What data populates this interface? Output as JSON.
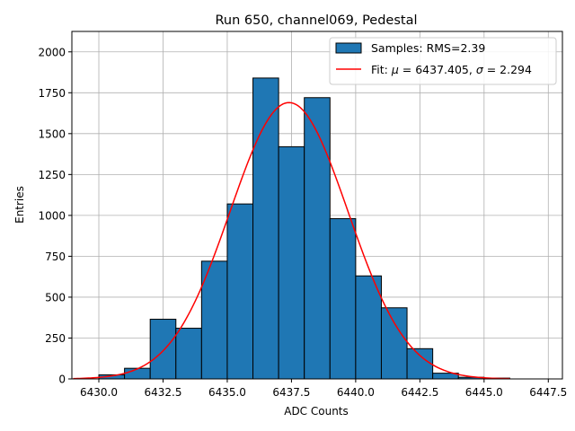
{
  "chart_data": {
    "type": "bar",
    "title": "Run 650, channel069, Pedestal",
    "xlabel": "ADC Counts",
    "ylabel": "Entries",
    "xlim": [
      6428.95,
      6448.05
    ],
    "ylim": [
      0,
      2125
    ],
    "grid": true,
    "legend_position": "top-right",
    "x_ticks": [
      6430.0,
      6432.5,
      6435.0,
      6437.5,
      6440.0,
      6442.5,
      6445.0,
      6447.5
    ],
    "x_tick_labels": [
      "6430.0",
      "6432.5",
      "6435.0",
      "6437.5",
      "6440.0",
      "6442.5",
      "6445.0",
      "6447.5"
    ],
    "y_ticks": [
      0,
      250,
      500,
      750,
      1000,
      1250,
      1500,
      1750,
      2000
    ],
    "y_tick_labels": [
      "0",
      "250",
      "500",
      "750",
      "1000",
      "1250",
      "1500",
      "1750",
      "2000"
    ],
    "histogram": {
      "name": "Samples: RMS=2.39",
      "color": "#1f77b4",
      "edge_color": "#000000",
      "bins": [
        {
          "x0": 6430.0,
          "x1": 6431.0,
          "count": 25
        },
        {
          "x0": 6431.0,
          "x1": 6432.0,
          "count": 65
        },
        {
          "x0": 6432.0,
          "x1": 6433.0,
          "count": 365
        },
        {
          "x0": 6433.0,
          "x1": 6434.0,
          "count": 310
        },
        {
          "x0": 6434.0,
          "x1": 6435.0,
          "count": 720
        },
        {
          "x0": 6435.0,
          "x1": 6436.0,
          "count": 1070
        },
        {
          "x0": 6436.0,
          "x1": 6437.0,
          "count": 1840
        },
        {
          "x0": 6437.0,
          "x1": 6438.0,
          "count": 1420
        },
        {
          "x0": 6438.0,
          "x1": 6439.0,
          "count": 1720
        },
        {
          "x0": 6439.0,
          "x1": 6440.0,
          "count": 980
        },
        {
          "x0": 6440.0,
          "x1": 6441.0,
          "count": 630
        },
        {
          "x0": 6441.0,
          "x1": 6442.0,
          "count": 435
        },
        {
          "x0": 6442.0,
          "x1": 6443.0,
          "count": 185
        },
        {
          "x0": 6443.0,
          "x1": 6444.0,
          "count": 35
        },
        {
          "x0": 6444.0,
          "x1": 6445.0,
          "count": 10
        },
        {
          "x0": 6445.0,
          "x1": 6446.0,
          "count": 5
        }
      ]
    },
    "fit": {
      "name": "Fit: μ = 6437.405, σ = 2.294",
      "label_prefix": "Fit: ",
      "mu_symbol": "μ",
      "mu_text": " = 6437.405, ",
      "sigma_symbol": "σ",
      "sigma_text": " = 2.294",
      "color": "#ff0000",
      "mu": 6437.405,
      "sigma": 2.294,
      "amplitude": 1690,
      "x_range": [
        6429.0,
        6446.0
      ]
    }
  }
}
